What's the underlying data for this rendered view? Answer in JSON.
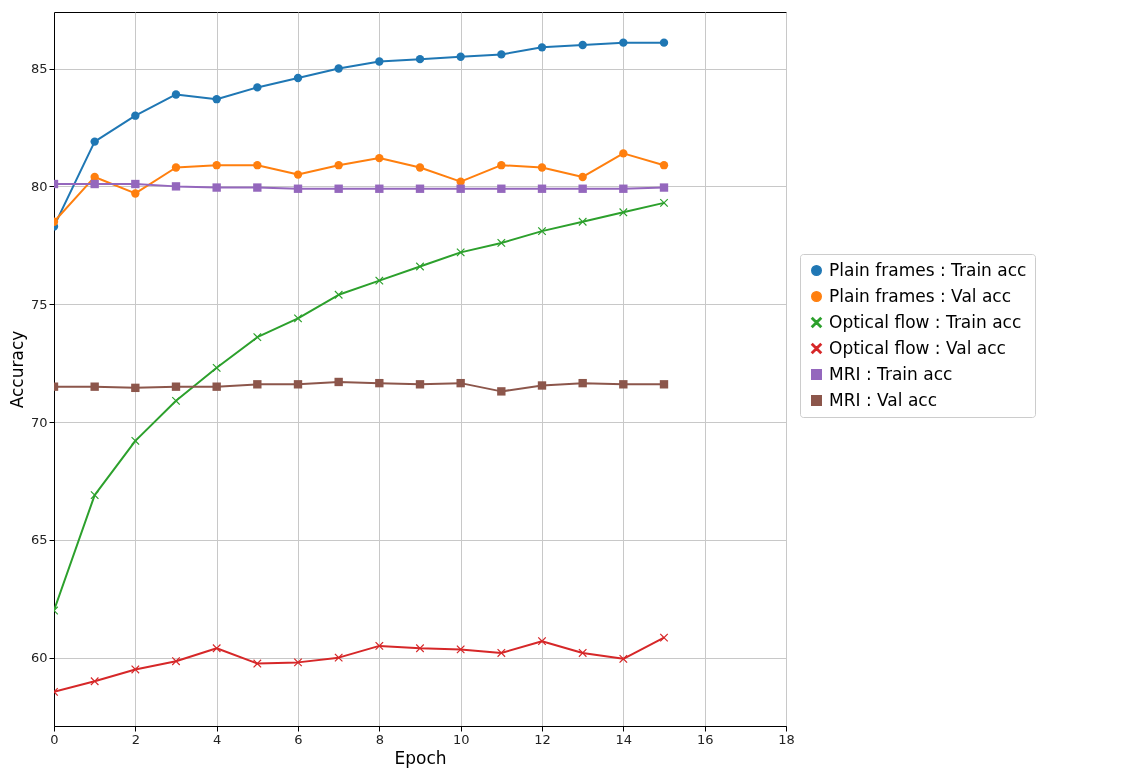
{
  "chart_data": {
    "type": "line",
    "xlabel": "Epoch",
    "ylabel": "Accuracy",
    "x": [
      0,
      1,
      2,
      3,
      4,
      5,
      6,
      7,
      8,
      9,
      10,
      11,
      12,
      13,
      14,
      15
    ],
    "xlim": [
      0,
      18
    ],
    "xticks": [
      0,
      2,
      4,
      6,
      8,
      10,
      12,
      14,
      16,
      18
    ],
    "ylim": [
      57.1,
      87.4
    ],
    "yticks": [
      60,
      65,
      70,
      75,
      80,
      85
    ],
    "grid": true,
    "legend": "right",
    "line_style": "solid",
    "series": [
      {
        "name": "Plain frames : Train acc",
        "color": "#1f77b4",
        "marker": "circle",
        "values": [
          78.3,
          81.9,
          83.0,
          83.9,
          83.7,
          84.2,
          84.6,
          85.0,
          85.3,
          85.4,
          85.5,
          85.6,
          85.9,
          86.0,
          86.1,
          86.1
        ]
      },
      {
        "name": "Plain frames : Val acc",
        "color": "#ff7f0e",
        "marker": "circle",
        "values": [
          78.5,
          80.4,
          79.7,
          80.8,
          80.9,
          80.9,
          80.5,
          80.9,
          81.2,
          80.8,
          80.2,
          80.9,
          80.8,
          80.4,
          81.4,
          80.9
        ]
      },
      {
        "name": "Optical flow : Train acc",
        "color": "#2ca02c",
        "marker": "cross",
        "values": [
          62.0,
          66.9,
          69.2,
          70.9,
          72.3,
          73.6,
          74.4,
          75.4,
          76.0,
          76.6,
          77.2,
          77.6,
          78.1,
          78.5,
          78.9,
          79.3
        ]
      },
      {
        "name": "Optical flow : Val acc",
        "color": "#d62728",
        "marker": "cross",
        "values": [
          58.55,
          59.0,
          59.5,
          59.85,
          60.4,
          59.75,
          59.8,
          60.0,
          60.5,
          60.4,
          60.35,
          60.2,
          60.7,
          60.2,
          59.95,
          60.85
        ]
      },
      {
        "name": "MRI : Train acc",
        "color": "#9467bd",
        "marker": "square",
        "values": [
          80.1,
          80.1,
          80.1,
          80.0,
          79.95,
          79.95,
          79.9,
          79.9,
          79.9,
          79.9,
          79.9,
          79.9,
          79.9,
          79.9,
          79.9,
          79.95
        ]
      },
      {
        "name": "MRI : Val acc",
        "color": "#8c564b",
        "marker": "square",
        "values": [
          71.5,
          71.5,
          71.45,
          71.5,
          71.5,
          71.6,
          71.6,
          71.7,
          71.65,
          71.6,
          71.65,
          71.3,
          71.55,
          71.65,
          71.6,
          71.6
        ]
      }
    ]
  }
}
